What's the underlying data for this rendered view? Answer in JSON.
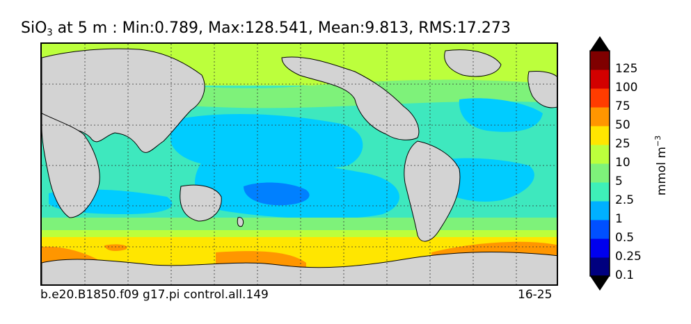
{
  "title": {
    "species_main": "SiO",
    "species_sub": "3",
    "rest": " at 5 m : Min:0.789, Max:128.541, Mean:9.813, RMS:17.273"
  },
  "caption": {
    "left": "b.e20.B1850.f09 g17.pi control.all.149",
    "right": "16-25"
  },
  "colorbar": {
    "units_main": "mmol m",
    "units_sup": "−3",
    "labels": [
      "125",
      "100",
      "75",
      "50",
      "25",
      "10",
      "5",
      "2.5",
      "1",
      "0.5",
      "0.25",
      "0.1"
    ],
    "colors_bottom_to_top": [
      "#00007f",
      "#0000ee",
      "#0050ff",
      "#00b0ff",
      "#3ef0b8",
      "#7ef27a",
      "#bcff3c",
      "#ffe600",
      "#ff9600",
      "#ff3c00",
      "#d20000",
      "#7f0000"
    ],
    "extend": "both"
  },
  "map_colors": {
    "land": "#d3d3d3",
    "ocean_default": "#3ee8be",
    "band_very_low": "#0080ff",
    "band_low": "#00ccff",
    "band_mid": "#3ef0b8",
    "band_high": "#7ef27a",
    "band_higher": "#bcff3c",
    "band_yellow": "#ffe600",
    "band_orange": "#ff9600"
  }
}
